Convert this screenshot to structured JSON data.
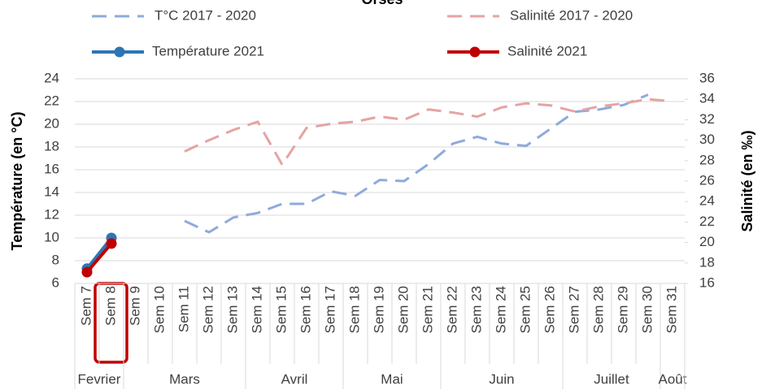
{
  "chart_data": {
    "type": "line",
    "title": "Orses",
    "y_label": "Température (en °C)",
    "y2_label": "Salinité (en ‰)",
    "categories": [
      "Sem 7",
      "Sem 8",
      "Sem 9",
      "Sem 10",
      "Sem 11",
      "Sem 12",
      "Sem 13",
      "Sem 14",
      "Sem 15",
      "Sem 16",
      "Sem 17",
      "Sem 18",
      "Sem 19",
      "Sem 20",
      "Sem 21",
      "Sem 22",
      "Sem 23",
      "Sem 24",
      "Sem 25",
      "Sem 26",
      "Sem 27",
      "Sem 28",
      "Sem 29",
      "Sem 30",
      "Sem 31"
    ],
    "groups": [
      {
        "label": "Fevrier",
        "span": 2
      },
      {
        "label": "Mars",
        "span": 5
      },
      {
        "label": "Avril",
        "span": 4
      },
      {
        "label": "Mai",
        "span": 4
      },
      {
        "label": "Juin",
        "span": 5
      },
      {
        "label": "Juillet",
        "span": 4
      },
      {
        "label": "Août",
        "span": 1
      }
    ],
    "ylim": [
      6,
      24
    ],
    "yticks": [
      6,
      8,
      10,
      12,
      14,
      16,
      18,
      20,
      22,
      24
    ],
    "y2lim": [
      16,
      36
    ],
    "y2ticks": [
      16,
      18,
      20,
      22,
      24,
      26,
      28,
      30,
      32,
      34,
      36
    ],
    "grid": true,
    "legend": "top",
    "series": [
      {
        "name": "T°C 2017 - 2020",
        "color": "#8faadc",
        "style": "dashed",
        "markers": false,
        "values": [
          null,
          null,
          null,
          null,
          11.5,
          10.5,
          11.8,
          12.2,
          13.0,
          13.0,
          14.1,
          13.7,
          15.1,
          15.0,
          16.5,
          18.3,
          18.9,
          18.3,
          18.1,
          19.6,
          21.1,
          21.3,
          21.7,
          22.6,
          null
        ]
      },
      {
        "name": "Salinité 2017 - 2020",
        "color": "#e6a3a3",
        "style": "dashed",
        "markers": false,
        "axis": "y2",
        "values": [
          null,
          null,
          null,
          null,
          28.9,
          30.0,
          31.0,
          31.8,
          27.6,
          31.2,
          31.6,
          31.8,
          32.3,
          32.0,
          33.0,
          32.7,
          32.3,
          33.2,
          33.6,
          33.4,
          32.8,
          33.3,
          33.6,
          34.0,
          33.8
        ]
      },
      {
        "name": "Température 2021",
        "color": "#2e75b6",
        "style": "solid",
        "markers": true,
        "values": [
          7.3,
          10.0,
          null,
          null,
          null,
          null,
          null,
          null,
          null,
          null,
          null,
          null,
          null,
          null,
          null,
          null,
          null,
          null,
          null,
          null,
          null,
          null,
          null,
          null,
          null
        ]
      },
      {
        "name": "Salinité 2021",
        "color": "#c00000",
        "style": "solid",
        "markers": true,
        "axis": "y2",
        "values": [
          17.1,
          19.9,
          null,
          null,
          null,
          null,
          null,
          null,
          null,
          null,
          null,
          null,
          null,
          null,
          null,
          null,
          null,
          null,
          null,
          null,
          null,
          null,
          null,
          null,
          null
        ]
      }
    ]
  }
}
